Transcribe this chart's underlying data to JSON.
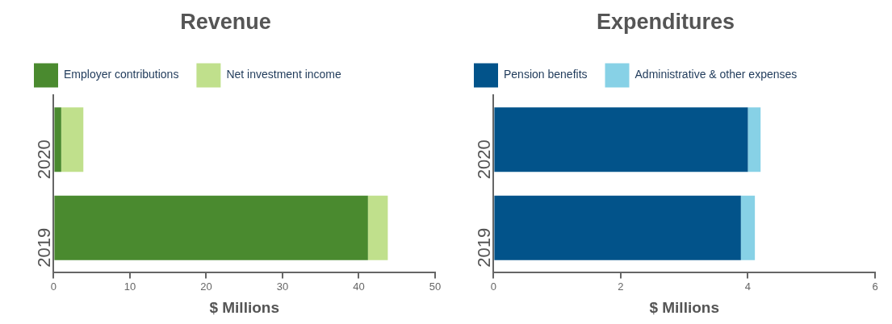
{
  "chart_data": [
    {
      "type": "bar",
      "title": "Revenue",
      "xlabel": "$ Millions",
      "orientation": "horizontal",
      "stacked": true,
      "categories": [
        "2020",
        "2019"
      ],
      "xlim": [
        0,
        50
      ],
      "xticks": [
        0,
        10,
        20,
        30,
        40,
        50
      ],
      "grid": false,
      "legend": "top left",
      "series": [
        {
          "name": "Employer contributions",
          "color": "#4a8a2f",
          "values": [
            1.0,
            41.2
          ]
        },
        {
          "name": "Net investment income",
          "color": "#c0e08c",
          "values": [
            2.9,
            2.6
          ]
        }
      ]
    },
    {
      "type": "bar",
      "title": "Expenditures",
      "xlabel": "$ Millions",
      "orientation": "horizontal",
      "stacked": true,
      "categories": [
        "2020",
        "2019"
      ],
      "xlim": [
        0,
        6
      ],
      "xticks": [
        0,
        2,
        4,
        6
      ],
      "grid": false,
      "legend": "top left",
      "series": [
        {
          "name": "Pension benefits",
          "color": "#02538a",
          "values": [
            4.0,
            3.89
          ]
        },
        {
          "name": "Administrative & other expenses",
          "color": "#87d1e6",
          "values": [
            0.2,
            0.22
          ]
        }
      ]
    }
  ]
}
